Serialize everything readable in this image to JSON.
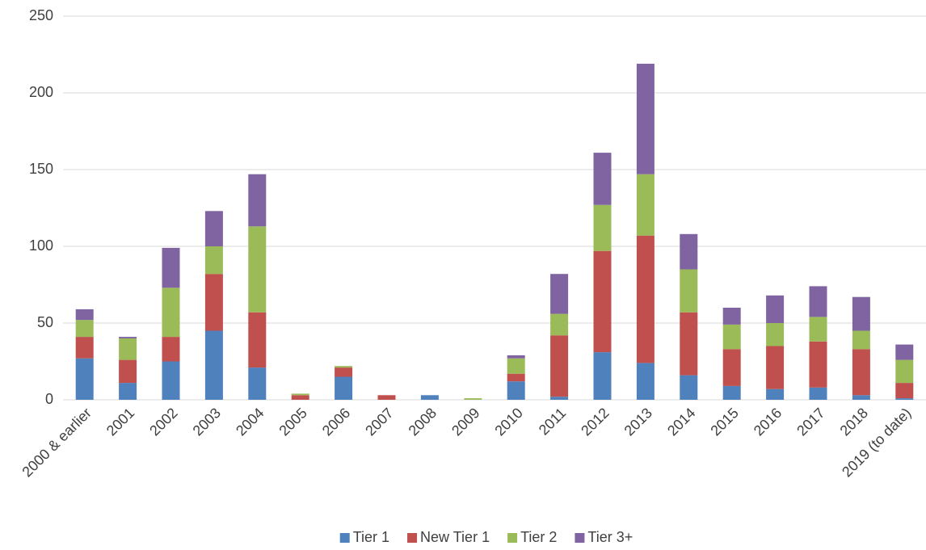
{
  "chart_data": {
    "type": "stacked_bar",
    "categories": [
      "2000 & earlier",
      "2001",
      "2002",
      "2003",
      "2004",
      "2005",
      "2006",
      "2007",
      "2008",
      "2009",
      "2010",
      "2011",
      "2012",
      "2013",
      "2014",
      "2015",
      "2016",
      "2017",
      "2018",
      "2019 (to date)"
    ],
    "series": [
      {
        "name": "Tier 1",
        "color": "#4f81bd",
        "values": [
          27,
          11,
          25,
          45,
          21,
          0,
          15,
          0,
          3,
          0,
          12,
          2,
          31,
          24,
          16,
          9,
          7,
          8,
          3,
          1
        ]
      },
      {
        "name": "New Tier 1",
        "color": "#c0504d",
        "values": [
          14,
          15,
          16,
          37,
          36,
          3,
          6,
          3,
          0,
          0,
          5,
          40,
          66,
          83,
          41,
          24,
          28,
          30,
          30,
          10
        ]
      },
      {
        "name": "Tier 2",
        "color": "#9bbb59",
        "values": [
          11,
          14,
          32,
          18,
          56,
          1,
          1,
          0,
          0,
          1,
          10,
          14,
          30,
          40,
          28,
          16,
          15,
          16,
          12,
          15
        ]
      },
      {
        "name": "Tier 3+",
        "color": "#8064a2",
        "values": [
          7,
          1,
          26,
          23,
          34,
          0,
          0,
          0,
          0,
          0,
          2,
          26,
          34,
          72,
          23,
          11,
          18,
          20,
          22,
          10
        ]
      }
    ],
    "ylim": [
      0,
      250
    ],
    "yticks": [
      0,
      50,
      100,
      150,
      200,
      250
    ],
    "grid": true,
    "legend": "bottom"
  }
}
